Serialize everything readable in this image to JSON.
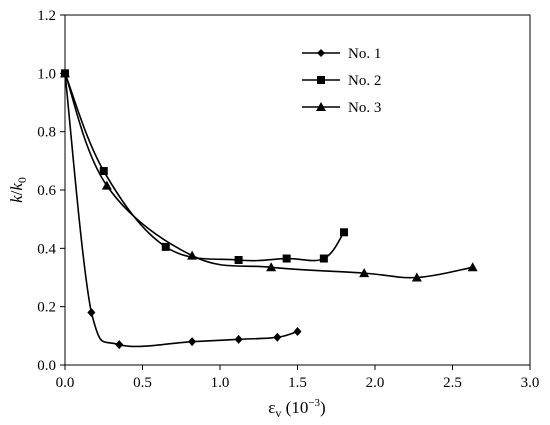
{
  "chart_data": {
    "type": "line",
    "title": "",
    "xlabel": {
      "main": "ε",
      "sub": "v",
      "unit": " (10",
      "exp": "−3",
      "close": ")"
    },
    "ylabel": {
      "num": "k",
      "slash": "/",
      "den": "k",
      "den_sub": "0"
    },
    "xlim": [
      0,
      3.0
    ],
    "ylim": [
      0,
      1.2
    ],
    "xticks": [
      "0.0",
      "0.5",
      "1.0",
      "1.5",
      "2.0",
      "2.5",
      "3.0"
    ],
    "yticks": [
      "0.0",
      "0.2",
      "0.4",
      "0.6",
      "0.8",
      "1.0",
      "1.2"
    ],
    "grid": false,
    "legend_position": "top-right",
    "series": [
      {
        "name": "No. 1",
        "marker": "diamond",
        "x": [
          0.0,
          0.17,
          0.35,
          0.82,
          1.12,
          1.37,
          1.5
        ],
        "y": [
          1.0,
          0.18,
          0.07,
          0.08,
          0.088,
          0.095,
          0.115
        ]
      },
      {
        "name": "No. 2",
        "marker": "square",
        "x": [
          0.0,
          0.25,
          0.65,
          1.12,
          1.43,
          1.67,
          1.8
        ],
        "y": [
          1.0,
          0.665,
          0.405,
          0.36,
          0.365,
          0.365,
          0.455
        ]
      },
      {
        "name": "No. 3",
        "marker": "triangle",
        "x": [
          0.0,
          0.27,
          0.82,
          1.33,
          1.93,
          2.27,
          2.63
        ],
        "y": [
          1.0,
          0.615,
          0.375,
          0.335,
          0.315,
          0.3,
          0.335
        ]
      }
    ]
  }
}
